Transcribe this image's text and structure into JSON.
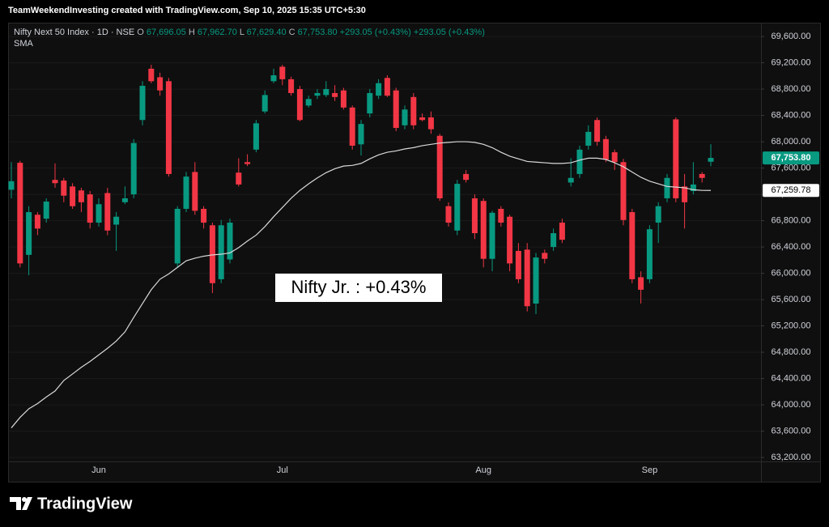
{
  "chart_data": {
    "type": "candlestick",
    "credit": "TeamWeekendInvesting created with TradingView.com, Sep 10, 2025 15:35 UTC+5:30",
    "title": "Nifty Next 50 Index · 1D · NSE",
    "ohlc_legend": [
      {
        "key": "O",
        "text": "67,696.05"
      },
      {
        "key": "H",
        "text": "67,962.70"
      },
      {
        "key": "L",
        "text": "67,629.40"
      },
      {
        "key": "C",
        "text": "67,753.80"
      }
    ],
    "change_labels": [
      "+293.05 (+0.43%)",
      "+293.05 (+0.43%)"
    ],
    "annotation": "Nifty Jr. : +0.43%",
    "brand": "TradingView",
    "up_color": "#089981",
    "down_color": "#f23645",
    "grid": true,
    "categories": [
      null,
      null,
      null,
      null,
      null,
      null,
      null,
      null,
      null,
      null,
      "Jun",
      null,
      null,
      null,
      null,
      null,
      null,
      null,
      null,
      null,
      null,
      null,
      null,
      null,
      null,
      null,
      null,
      null,
      null,
      null,
      null,
      "Jul",
      null,
      null,
      null,
      null,
      null,
      null,
      null,
      null,
      null,
      null,
      null,
      null,
      null,
      null,
      null,
      null,
      null,
      null,
      null,
      null,
      null,
      null,
      "Aug",
      null,
      null,
      null,
      null,
      null,
      null,
      null,
      null,
      null,
      null,
      null,
      null,
      null,
      null,
      null,
      null,
      null,
      null,
      "Sep",
      null,
      null,
      null,
      null,
      null,
      null,
      null
    ],
    "open": [
      67270,
      67680,
      66280,
      66890,
      66830,
      67420,
      67410,
      67320,
      67260,
      67200,
      66770,
      67220,
      66740,
      67080,
      67200,
      68330,
      69110,
      68980,
      68920,
      66150,
      66980,
      67540,
      66980,
      66730,
      65910,
      66210,
      67530,
      67690,
      67880,
      68460,
      68920,
      69140,
      68950,
      68800,
      68550,
      68700,
      68710,
      68740,
      68780,
      68520,
      67960,
      68430,
      68700,
      68970,
      68780,
      68250,
      68680,
      68370,
      68370,
      68090,
      67020,
      66650,
      67510,
      67140,
      67100,
      66220,
      66980,
      66860,
      66340,
      66360,
      65540,
      66310,
      66400,
      66770,
      67380,
      67510,
      67940,
      68330,
      68040,
      67840,
      67690,
      66930,
      65940,
      65910,
      66770,
      67140,
      68340,
      67320,
      67250,
      67510,
      67696.05
    ],
    "high": [
      67690,
      67710,
      67020,
      66930,
      67140,
      67670,
      67450,
      67370,
      67300,
      67250,
      67140,
      67300,
      66930,
      67320,
      68040,
      68920,
      69170,
      69050,
      68970,
      67020,
      67540,
      67690,
      67020,
      66770,
      66810,
      66830,
      67750,
      67810,
      68330,
      68780,
      69110,
      69170,
      68990,
      68850,
      68700,
      68800,
      68920,
      68860,
      68820,
      68550,
      68330,
      68800,
      68950,
      69010,
      68820,
      68550,
      68740,
      68430,
      68460,
      68120,
      67080,
      67420,
      67570,
      67200,
      67140,
      66950,
      67020,
      66890,
      66460,
      66460,
      66310,
      66360,
      66680,
      66830,
      67750,
      67940,
      68250,
      68370,
      68090,
      67880,
      67740,
      66980,
      66030,
      66730,
      67080,
      67510,
      68370,
      67510,
      67690,
      67540,
      67962.7
    ],
    "low": [
      67140,
      66090,
      65970,
      66580,
      66770,
      67300,
      67080,
      66980,
      66930,
      66680,
      66710,
      66580,
      66340,
      67050,
      67140,
      68250,
      68890,
      68700,
      67470,
      66090,
      66930,
      66890,
      66680,
      65700,
      65850,
      66150,
      67320,
      67630,
      67840,
      68430,
      68890,
      68860,
      68700,
      68310,
      68520,
      68650,
      68680,
      68620,
      68490,
      67880,
      67790,
      68370,
      68650,
      68680,
      68160,
      68190,
      68190,
      68310,
      68120,
      67100,
      66710,
      66580,
      67380,
      66520,
      66090,
      66030,
      66710,
      66030,
      65850,
      65420,
      65380,
      66150,
      66340,
      66460,
      67320,
      67450,
      67880,
      67940,
      67690,
      67570,
      66730,
      65850,
      65540,
      65850,
      66460,
      67080,
      67080,
      66680,
      67200,
      67380,
      67629.4
    ],
    "close": [
      67400,
      66150,
      66930,
      66680,
      67090,
      67370,
      67180,
      67020,
      67080,
      66770,
      67050,
      66650,
      66860,
      67140,
      67980,
      68850,
      68920,
      68780,
      67510,
      66980,
      67470,
      66950,
      66770,
      65850,
      66730,
      66770,
      67350,
      67660,
      68280,
      68710,
      69010,
      68950,
      68740,
      68330,
      68650,
      68740,
      68800,
      68680,
      68520,
      67940,
      68270,
      68740,
      68890,
      68700,
      68210,
      68490,
      68250,
      68330,
      68190,
      67140,
      66770,
      67360,
      67420,
      66610,
      66220,
      66920,
      66770,
      66150,
      65910,
      65500,
      66240,
      66220,
      66610,
      66510,
      67450,
      67880,
      68150,
      68000,
      67730,
      67690,
      66810,
      65910,
      65750,
      66670,
      67020,
      67450,
      67140,
      67080,
      67350,
      67450,
      67753.8
    ],
    "last_price_label": "67,753.80",
    "overlays": [
      {
        "name": "SMA",
        "color": "#d9d9d9",
        "value_label": "67,259.78",
        "values": [
          63650,
          63810,
          63940,
          64020,
          64120,
          64210,
          64370,
          64470,
          64570,
          64660,
          64760,
          64860,
          64970,
          65110,
          65330,
          65540,
          65750,
          65910,
          65990,
          66090,
          66190,
          66230,
          66260,
          66280,
          66290,
          66310,
          66390,
          66490,
          66580,
          66710,
          66860,
          67000,
          67140,
          67260,
          67360,
          67450,
          67530,
          67590,
          67630,
          67640,
          67670,
          67740,
          67800,
          67840,
          67860,
          67890,
          67910,
          67940,
          67960,
          67980,
          67990,
          68000,
          68000,
          67990,
          67960,
          67910,
          67840,
          67780,
          67740,
          67700,
          67690,
          67680,
          67670,
          67670,
          67680,
          67720,
          67750,
          67750,
          67730,
          67680,
          67620,
          67540,
          67460,
          67400,
          67360,
          67320,
          67310,
          67300,
          67270,
          67260,
          67259.78
        ]
      }
    ],
    "ylim": [
      63140,
      69810
    ],
    "yticks": [
      {
        "value": 63200,
        "label": "63,200.00"
      },
      {
        "value": 63600,
        "label": "63,600.00"
      },
      {
        "value": 64000,
        "label": "64,000.00"
      },
      {
        "value": 64400,
        "label": "64,400.00"
      },
      {
        "value": 64800,
        "label": "64,800.00"
      },
      {
        "value": 65200,
        "label": "65,200.00"
      },
      {
        "value": 65600,
        "label": "65,600.00"
      },
      {
        "value": 66000,
        "label": "66,000.00"
      },
      {
        "value": 66400,
        "label": "66,400.00"
      },
      {
        "value": 66800,
        "label": "66,800.00"
      },
      {
        "value": 67200,
        "label": "67,200.00"
      },
      {
        "value": 67600,
        "label": "67,600.00"
      },
      {
        "value": 68000,
        "label": "68,000.00"
      },
      {
        "value": 68400,
        "label": "68,400.00"
      },
      {
        "value": 68800,
        "label": "68,800.00"
      },
      {
        "value": 69200,
        "label": "69,200.00"
      },
      {
        "value": 69600,
        "label": "69,600.00"
      }
    ]
  }
}
